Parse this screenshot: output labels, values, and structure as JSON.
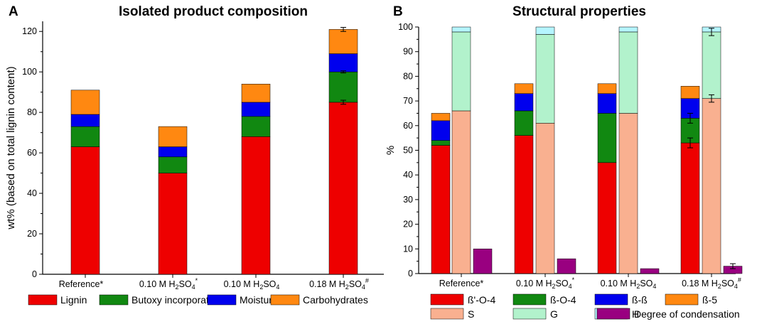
{
  "charts": [
    {
      "panel": "A",
      "chart_data": {
        "type": "bar",
        "stacked": true,
        "title": "Isolated product composition",
        "ylabel": "wt% (based on total lignin content)",
        "ylim": [
          0,
          125
        ],
        "yticks": [
          0,
          20,
          40,
          60,
          80,
          100,
          120
        ],
        "categories": [
          {
            "base": "Reference",
            "sup": "*"
          },
          {
            "base": "0.10 M H",
            "sub1": "2",
            "mid": "SO",
            "sub2": "4",
            "sup": "*"
          },
          {
            "base": "0.10 M H",
            "sub1": "2",
            "mid": "SO",
            "sub2": "4",
            "sup": ""
          },
          {
            "base": "0.18 M H",
            "sub1": "2",
            "mid": "SO",
            "sub2": "4",
            "sup": "#"
          }
        ],
        "series": [
          {
            "name": "Lignin",
            "color": "#ee0000",
            "values": [
              63,
              50,
              68,
              85
            ]
          },
          {
            "name": "Butoxy incorporation",
            "color": "#118811",
            "values": [
              10,
              8,
              10,
              15
            ]
          },
          {
            "name": "Moisture",
            "color": "#0000ee",
            "values": [
              6,
              5,
              7,
              9
            ]
          },
          {
            "name": "Carbohydrates",
            "color": "#ff8811",
            "values": [
              12,
              10,
              9,
              12
            ]
          }
        ],
        "error_bars": [
          {
            "category_index": 3,
            "series": "Lignin",
            "top": 85,
            "error": 1
          },
          {
            "category_index": 3,
            "series": "Butoxy incorporation",
            "top": 100,
            "error": 0.5
          },
          {
            "category_index": 3,
            "series": "Carbohydrates",
            "top": 121,
            "error": 1
          }
        ]
      }
    },
    {
      "panel": "B",
      "chart_data": {
        "type": "bar",
        "stacked": true,
        "title": "Structural properties",
        "ylabel": "%",
        "ylim": [
          0,
          100
        ],
        "yticks": [
          0,
          10,
          20,
          30,
          40,
          50,
          60,
          70,
          80,
          90,
          100
        ],
        "categories": [
          {
            "base": "Reference",
            "sup": "*"
          },
          {
            "base": "0.10 M H",
            "sub1": "2",
            "mid": "SO",
            "sub2": "4",
            "sup": "*"
          },
          {
            "base": "0.10 M H",
            "sub1": "2",
            "mid": "SO",
            "sub2": "4",
            "sup": ""
          },
          {
            "base": "0.18 M H",
            "sub1": "2",
            "mid": "SO",
            "sub2": "4",
            "sup": "#"
          }
        ],
        "linkage_series": [
          {
            "name": "ß'-O-4",
            "color": "#ee0000",
            "values": [
              52,
              56,
              45,
              53
            ]
          },
          {
            "name": "ß-O-4",
            "color": "#118811",
            "values": [
              2,
              10,
              20,
              10
            ]
          },
          {
            "name": "ß-ß",
            "color": "#0000ee",
            "values": [
              8,
              7,
              8,
              8
            ]
          },
          {
            "name": "ß-5",
            "color": "#ff8811",
            "values": [
              3,
              4,
              4,
              5
            ]
          }
        ],
        "monomer_series": [
          {
            "name": "S",
            "color": "#f9b090",
            "values": [
              66,
              61,
              65,
              71
            ]
          },
          {
            "name": "G",
            "color": "#b2f2cc",
            "values": [
              32,
              36,
              33,
              27
            ]
          },
          {
            "name": "H",
            "color": "#b5f5ff",
            "values": [
              2,
              3,
              2,
              2
            ]
          }
        ],
        "condensation": {
          "name": "Degree of condensation",
          "color": "#990080",
          "values": [
            10,
            6,
            2,
            3
          ]
        },
        "error_bars": [
          {
            "category_index": 3,
            "group": "linkage",
            "top": 53,
            "error": 2
          },
          {
            "category_index": 3,
            "group": "linkage",
            "top": 63,
            "error": 2
          },
          {
            "category_index": 3,
            "group": "monomer",
            "top": 71,
            "error": 1.5
          },
          {
            "category_index": 3,
            "group": "monomer",
            "top": 98,
            "error": 1.5
          },
          {
            "category_index": 3,
            "group": "condensation",
            "top": 3,
            "error": 1
          }
        ]
      }
    }
  ],
  "legend_a": [
    "Lignin",
    "Butoxy incorporation",
    "Moisture",
    "Carbohydrates"
  ],
  "legend_b_row1": [
    "ß'-O-4",
    "ß-O-4",
    "ß-ß",
    "ß-5"
  ],
  "legend_b_row2": [
    "S",
    "G",
    "H",
    "Degree of condensation"
  ]
}
